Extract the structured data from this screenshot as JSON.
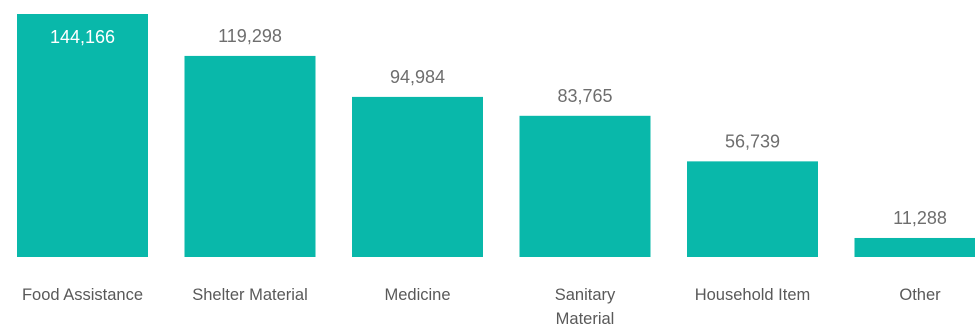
{
  "chart_data": {
    "type": "bar",
    "categories": [
      "Food Assistance",
      "Shelter Material",
      "Medicine",
      "Sanitary Material",
      "Household Item",
      "Other"
    ],
    "category_label_lines": [
      [
        "Food Assistance"
      ],
      [
        "Shelter Material"
      ],
      [
        "Medicine"
      ],
      [
        "Sanitary",
        "Material"
      ],
      [
        "Household Item"
      ],
      [
        "Other"
      ]
    ],
    "values": [
      144166,
      119298,
      94984,
      83765,
      56739,
      11288
    ],
    "value_labels": [
      "144,166",
      "119,298",
      "94,984",
      "83,765",
      "56,739",
      "11,288"
    ],
    "title": "",
    "xlabel": "",
    "ylabel": "",
    "ylim": [
      0,
      144166
    ],
    "grid": false,
    "legend": "none",
    "colors": {
      "bar": "#09b8aa",
      "label_inside": "#ffffff",
      "label_outside": "#6e6e6e",
      "category_label": "#595959"
    }
  }
}
